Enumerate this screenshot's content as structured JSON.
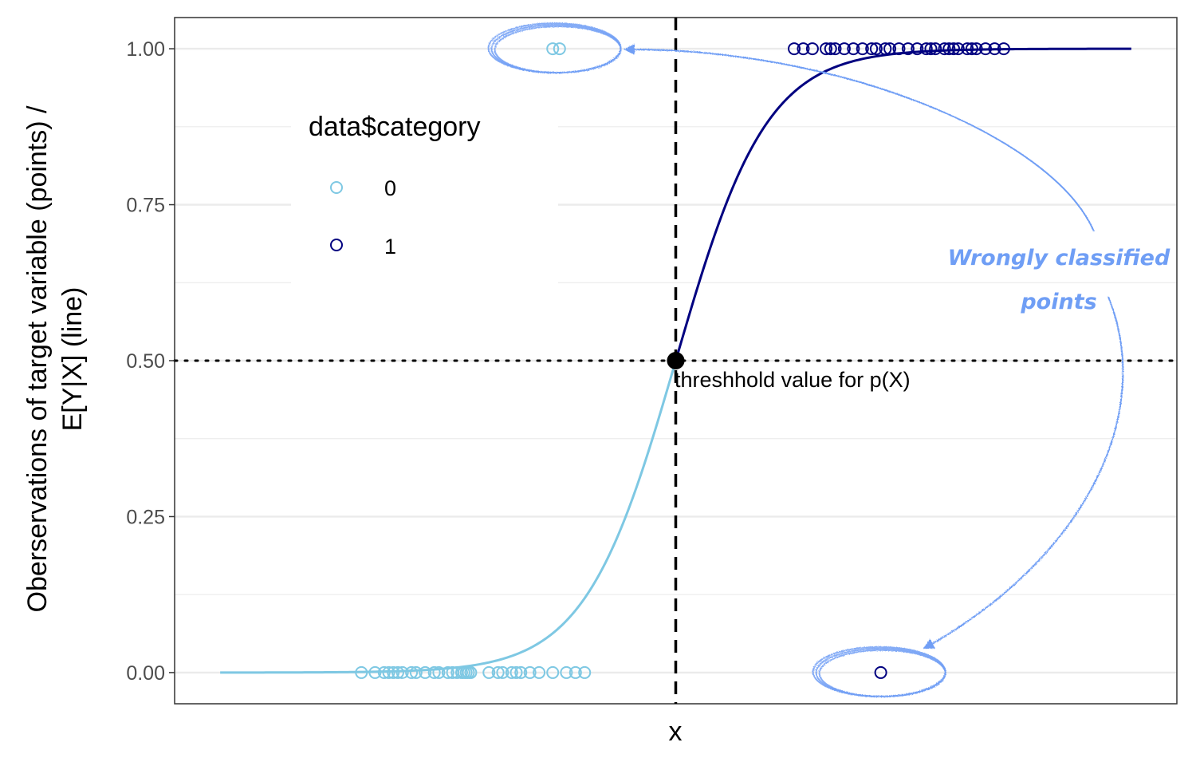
{
  "chart_data": {
    "type": "scatter",
    "xlabel": "x",
    "ylabel_lines": [
      "Oberservations of target variable (points) /",
      "E[Y|X] (line)"
    ],
    "ylim": [
      -0.05,
      1.05
    ],
    "y_ticks": [
      "0.00",
      "0.25",
      "0.50",
      "0.75",
      "1.00"
    ],
    "y_tick_values": [
      0,
      0.25,
      0.5,
      0.75,
      1
    ],
    "x_axis_labeled": false,
    "grid": "horizontal",
    "legend": {
      "title": "data$category",
      "position": "top-left",
      "entries": [
        {
          "label": "0",
          "color": "#7ec8e3"
        },
        {
          "label": "1",
          "color": "#000080"
        }
      ]
    },
    "threshold": {
      "y": 0.5,
      "label": "threshhold value for p(X)"
    },
    "x_range": [
      -1.0,
      1.0
    ],
    "curve": {
      "description": "logistic curve E[Y|X], light blue below threshold, dark blue above",
      "center": 0.0,
      "steepness": 10.0
    },
    "series": [
      {
        "name": "0",
        "color": "#7ec8e3",
        "points": [
          {
            "x": -0.69,
            "y": 0
          },
          {
            "x": -0.66,
            "y": 0
          },
          {
            "x": -0.64,
            "y": 0
          },
          {
            "x": -0.63,
            "y": 0
          },
          {
            "x": -0.62,
            "y": 0
          },
          {
            "x": -0.61,
            "y": 0
          },
          {
            "x": -0.6,
            "y": 0
          },
          {
            "x": -0.58,
            "y": 0
          },
          {
            "x": -0.57,
            "y": 0
          },
          {
            "x": -0.55,
            "y": 0
          },
          {
            "x": -0.53,
            "y": 0
          },
          {
            "x": -0.52,
            "y": 0
          },
          {
            "x": -0.5,
            "y": 0
          },
          {
            "x": -0.49,
            "y": 0
          },
          {
            "x": -0.48,
            "y": 0
          },
          {
            "x": -0.47,
            "y": 0
          },
          {
            "x": -0.465,
            "y": 0
          },
          {
            "x": -0.46,
            "y": 0
          },
          {
            "x": -0.455,
            "y": 0
          },
          {
            "x": -0.45,
            "y": 0
          },
          {
            "x": -0.41,
            "y": 0
          },
          {
            "x": -0.39,
            "y": 0
          },
          {
            "x": -0.38,
            "y": 0
          },
          {
            "x": -0.36,
            "y": 0
          },
          {
            "x": -0.35,
            "y": 0
          },
          {
            "x": -0.34,
            "y": 0
          },
          {
            "x": -0.32,
            "y": 0
          },
          {
            "x": -0.3,
            "y": 0
          },
          {
            "x": -0.27,
            "y": 0
          },
          {
            "x": -0.24,
            "y": 0
          },
          {
            "x": -0.22,
            "y": 0
          },
          {
            "x": -0.2,
            "y": 0
          },
          {
            "x": -0.27,
            "y": 1
          },
          {
            "x": -0.255,
            "y": 1
          }
        ]
      },
      {
        "name": "1",
        "color": "#000080",
        "points": [
          {
            "x": 0.26,
            "y": 1
          },
          {
            "x": 0.28,
            "y": 1
          },
          {
            "x": 0.3,
            "y": 1
          },
          {
            "x": 0.33,
            "y": 1
          },
          {
            "x": 0.34,
            "y": 1
          },
          {
            "x": 0.35,
            "y": 1
          },
          {
            "x": 0.37,
            "y": 1
          },
          {
            "x": 0.39,
            "y": 1
          },
          {
            "x": 0.41,
            "y": 1
          },
          {
            "x": 0.43,
            "y": 1
          },
          {
            "x": 0.44,
            "y": 1
          },
          {
            "x": 0.46,
            "y": 1
          },
          {
            "x": 0.47,
            "y": 1
          },
          {
            "x": 0.49,
            "y": 1
          },
          {
            "x": 0.51,
            "y": 1
          },
          {
            "x": 0.53,
            "y": 1
          },
          {
            "x": 0.55,
            "y": 1
          },
          {
            "x": 0.56,
            "y": 1
          },
          {
            "x": 0.57,
            "y": 1
          },
          {
            "x": 0.59,
            "y": 1
          },
          {
            "x": 0.6,
            "y": 1
          },
          {
            "x": 0.61,
            "y": 1
          },
          {
            "x": 0.62,
            "y": 1
          },
          {
            "x": 0.64,
            "y": 1
          },
          {
            "x": 0.65,
            "y": 1
          },
          {
            "x": 0.66,
            "y": 1
          },
          {
            "x": 0.68,
            "y": 1
          },
          {
            "x": 0.7,
            "y": 1
          },
          {
            "x": 0.72,
            "y": 1
          },
          {
            "x": 0.45,
            "y": 0
          }
        ]
      }
    ],
    "annotations": [
      {
        "text": "Wrongly classified",
        "color": "#6f9ef5"
      },
      {
        "text": "points",
        "color": "#6f9ef5"
      }
    ]
  }
}
